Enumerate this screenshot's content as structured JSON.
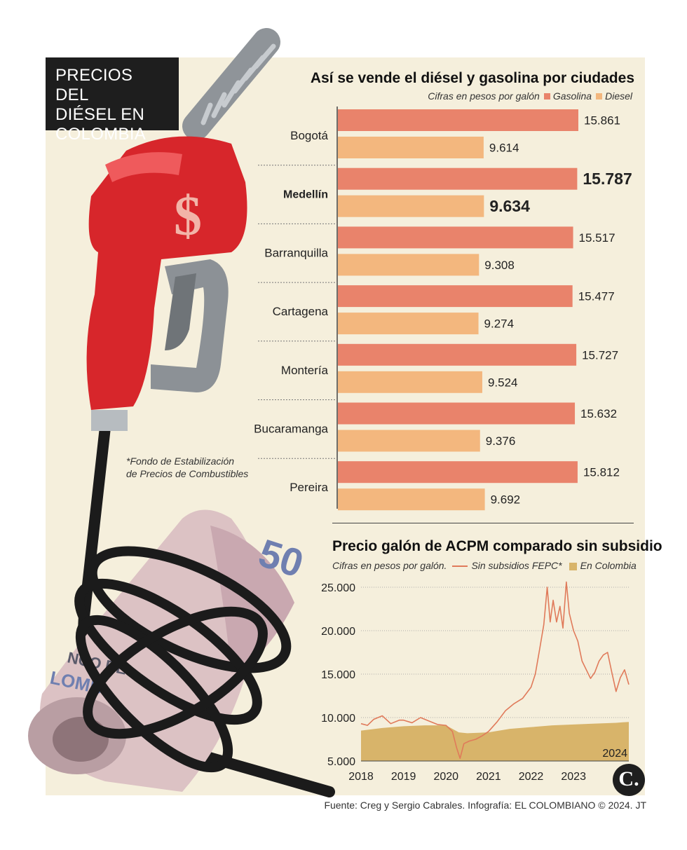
{
  "header": {
    "title_lines": [
      "PRECIOS DEL",
      "DIÉSEL EN",
      "COLOMBIA"
    ]
  },
  "illustration": {
    "pump_symbol": "$",
    "bill_number": "50",
    "bill_text_1": "NCO DE",
    "bill_text_2": "LOMB"
  },
  "footnote_lines": [
    "*Fondo de Estabilización",
    "de Precios de Combustibles"
  ],
  "colors": {
    "gasolina": "#e9836b",
    "diesel": "#f3b77e",
    "line": "#e07a5a",
    "area": "#d8b46a",
    "panel": "#f5efdc"
  },
  "chart_data": [
    {
      "type": "bar",
      "title": "Así se vende el diésel y gasolina por ciudades",
      "subtitle": "Cifras en pesos por galón",
      "highlight": "Medellín",
      "categories": [
        "Bogotá",
        "Medellín",
        "Barranquilla",
        "Cartagena",
        "Montería",
        "Bucaramanga",
        "Pereira"
      ],
      "series": [
        {
          "name": "Gasolina",
          "values": [
            15861,
            15787,
            15517,
            15477,
            15727,
            15632,
            15812
          ],
          "labels": [
            "15.861",
            "15.787",
            "15.517",
            "15.477",
            "15.727",
            "15.632",
            "15.812"
          ]
        },
        {
          "name": "Diesel",
          "values": [
            9614,
            9634,
            9308,
            9274,
            9524,
            9376,
            9692
          ],
          "labels": [
            "9.614",
            "9.634",
            "9.308",
            "9.274",
            "9.524",
            "9.376",
            "9.692"
          ]
        }
      ],
      "xlim": [
        0,
        16500
      ],
      "legend": "top-right"
    },
    {
      "type": "area",
      "title": "Precio galón de ACPM comparado sin subsidio",
      "subtitle": "Cifras en pesos por galón.",
      "x_ticks": [
        "2018",
        "2019",
        "2020",
        "2021",
        "2022",
        "2023"
      ],
      "x_tick_values": [
        2018,
        2019,
        2020,
        2021,
        2022,
        2023
      ],
      "end_label": "2024",
      "xlim": [
        2018,
        2024.3
      ],
      "y_ticks": [
        "25.000",
        "20.000",
        "15.000",
        "10.000",
        "5.000"
      ],
      "y_tick_values": [
        25000,
        20000,
        15000,
        10000,
        5000
      ],
      "ylim": [
        5000,
        25000
      ],
      "grid": true,
      "legend": "top",
      "series": [
        {
          "name": "Sin subsidios FEPC*",
          "kind": "line",
          "x": [
            2018.0,
            2018.15,
            2018.3,
            2018.5,
            2018.7,
            2018.9,
            2019.0,
            2019.2,
            2019.4,
            2019.6,
            2019.8,
            2020.0,
            2020.15,
            2020.25,
            2020.33,
            2020.42,
            2020.55,
            2020.7,
            2020.85,
            2021.0,
            2021.2,
            2021.4,
            2021.6,
            2021.8,
            2022.0,
            2022.1,
            2022.2,
            2022.3,
            2022.38,
            2022.45,
            2022.52,
            2022.6,
            2022.68,
            2022.75,
            2022.83,
            2022.9,
            2023.0,
            2023.1,
            2023.2,
            2023.3,
            2023.4,
            2023.5,
            2023.6,
            2023.7,
            2023.8,
            2023.9,
            2024.0,
            2024.1,
            2024.2,
            2024.3
          ],
          "y": [
            9300,
            9100,
            9800,
            10200,
            9300,
            9700,
            9700,
            9400,
            10000,
            9600,
            9200,
            9100,
            8400,
            6500,
            5300,
            7000,
            7300,
            7500,
            7900,
            8400,
            9500,
            10800,
            11600,
            12200,
            13500,
            15000,
            17800,
            20700,
            25000,
            21000,
            23500,
            21000,
            22800,
            20300,
            25600,
            22000,
            20000,
            18800,
            16500,
            15500,
            14500,
            15200,
            16500,
            17200,
            17500,
            15200,
            13000,
            14600,
            15500,
            13800
          ]
        },
        {
          "name": "En Colombia",
          "kind": "area",
          "x": [
            2018.0,
            2018.5,
            2019.0,
            2019.5,
            2020.0,
            2020.3,
            2020.5,
            2021.0,
            2021.5,
            2022.0,
            2022.5,
            2023.0,
            2023.5,
            2024.0,
            2024.3
          ],
          "y": [
            8500,
            8800,
            9000,
            9100,
            9100,
            8300,
            8200,
            8300,
            8700,
            8900,
            9100,
            9200,
            9300,
            9400,
            9500
          ]
        }
      ]
    }
  ],
  "source": "Fuente: Creg y Sergio Cabrales. Infografía: EL COLOMBIANO © 2024. JT",
  "logo_text": "C."
}
